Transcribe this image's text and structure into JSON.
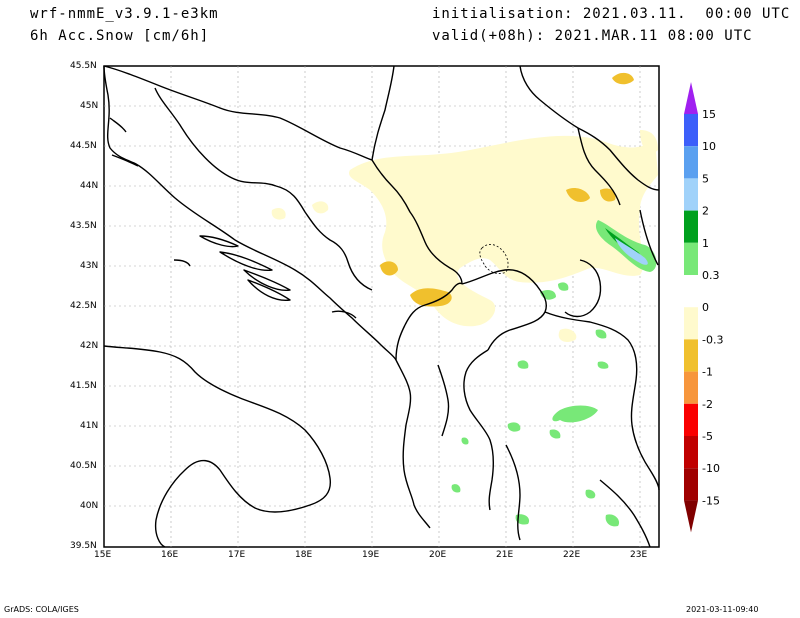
{
  "header": {
    "model": "wrf-nmmE_v3.9.1-e3km",
    "field": "6h Acc.Snow [cm/6h]",
    "init": "initialisation: 2021.03.11.  00:00 UTC",
    "valid": "valid(+08h): 2021.MAR.11 08:00 UTC"
  },
  "map": {
    "lat_labels": [
      "45.5N",
      "45N",
      "44.5N",
      "44N",
      "43.5N",
      "43N",
      "42.5N",
      "42N",
      "41.5N",
      "41N",
      "40.5N",
      "40N",
      "39.5N"
    ],
    "lon_labels": [
      "15E",
      "16E",
      "17E",
      "18E",
      "19E",
      "20E",
      "21E",
      "22E",
      "23E"
    ],
    "lat_range": [
      39.5,
      45.5
    ],
    "lon_range": [
      15.0,
      23.3
    ]
  },
  "colorbar": {
    "levels": [
      "15",
      "10",
      "5",
      "2",
      "1",
      "0.3",
      "0",
      "-0.3",
      "-1",
      "-2",
      "-5",
      "-10",
      "-15"
    ],
    "colors": [
      "#a020f0",
      "#3c5ffa",
      "#5aa0f0",
      "#a0d2fa",
      "#00a01e",
      "#78e878",
      "#ffffff",
      "#fffacd",
      "#f0c02d",
      "#f7963c",
      "#fa0000",
      "#c00000",
      "#a00000",
      "#800000"
    ]
  },
  "footer": {
    "left": "GrADS: COLA/IGES",
    "right": "2021-03-11-09:40"
  }
}
